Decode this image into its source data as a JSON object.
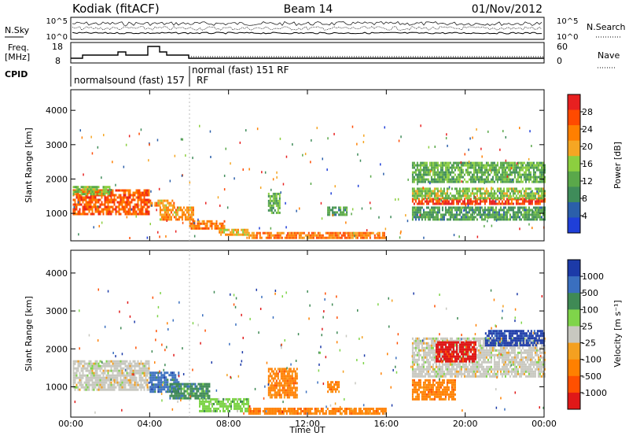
{
  "header": {
    "station": "Kodiak (fitACF)",
    "beam": "Beam 14",
    "date": "01/Nov/2012"
  },
  "noise_panel": {
    "left_label": "N.Sky",
    "right_label": "N.Search",
    "left_ticks": [
      "10^5",
      "10^0"
    ],
    "right_ticks": [
      "10^5",
      "10^0"
    ]
  },
  "freq_panel": {
    "left_label_line1": "Freq.",
    "left_label_line2": "[MHz]",
    "right_label": "Nave",
    "left_ticks": [
      "18",
      "8"
    ],
    "right_ticks": [
      "60",
      "0"
    ]
  },
  "cpid": {
    "label": "CPID",
    "modes": [
      "normalsound (fast) 157",
      "RF",
      "normal (fast) 151 RF"
    ]
  },
  "colors": {
    "power": [
      "#1f3fd8",
      "#2b5faa",
      "#3f8c5a",
      "#5aa84a",
      "#8ccf3f",
      "#f5a623",
      "#ff7f00",
      "#ff4a00",
      "#e82020"
    ],
    "velocity": [
      "#1c3aa8",
      "#3a6fbf",
      "#3f8a55",
      "#7fd44a",
      "#c8c8c0",
      "#f4a020",
      "#ff8000",
      "#ff5000",
      "#e01818"
    ]
  },
  "chart_data": [
    {
      "type": "heatmap",
      "title": "Power",
      "ylabel": "Slant Range [km]",
      "yticks": [
        "1000",
        "2000",
        "3000",
        "4000"
      ],
      "ylim": [
        200,
        4600
      ],
      "colorbar_label": "Power [dB]",
      "colorbar_ticks": [
        "4",
        "8",
        "12",
        "16",
        "20",
        "24",
        "28"
      ],
      "colorbar_range": [
        0,
        30
      ],
      "bands": [
        {
          "t0": 0.1,
          "t1": 4.0,
          "r0": 1000,
          "r1": 1700,
          "level": 24
        },
        {
          "t0": 0.1,
          "t1": 2.0,
          "r0": 1550,
          "r1": 1800,
          "level": 14
        },
        {
          "t0": 4.0,
          "t1": 5.2,
          "r0": 1200,
          "r1": 1400,
          "level": 20
        },
        {
          "t0": 4.5,
          "t1": 6.2,
          "r0": 800,
          "r1": 1200,
          "level": 20
        },
        {
          "t0": 6.0,
          "t1": 7.8,
          "r0": 550,
          "r1": 800,
          "level": 22
        },
        {
          "t0": 7.5,
          "t1": 9.0,
          "r0": 350,
          "r1": 550,
          "level": 18
        },
        {
          "t0": 9.0,
          "t1": 16.0,
          "r0": 320,
          "r1": 460,
          "level": 22
        },
        {
          "t0": 10.0,
          "t1": 10.6,
          "r0": 1000,
          "r1": 1600,
          "level": 12
        },
        {
          "t0": 13.0,
          "t1": 14.0,
          "r0": 950,
          "r1": 1200,
          "level": 10
        },
        {
          "t0": 17.3,
          "t1": 24.0,
          "r0": 1250,
          "r1": 1450,
          "level": 26
        },
        {
          "t0": 17.3,
          "t1": 24.0,
          "r0": 1450,
          "r1": 1750,
          "level": 14
        },
        {
          "t0": 17.3,
          "t1": 24.0,
          "r0": 1900,
          "r1": 2500,
          "level": 12
        },
        {
          "t0": 17.3,
          "t1": 24.0,
          "r0": 800,
          "r1": 1200,
          "level": 10
        }
      ]
    },
    {
      "type": "heatmap",
      "title": "Velocity",
      "ylabel": "Slant Range [km]",
      "yticks": [
        "1000",
        "2000",
        "3000",
        "4000"
      ],
      "ylim": [
        200,
        4600
      ],
      "colorbar_label": "Velocity [m s⁻¹]",
      "colorbar_ticks": [
        "1000",
        "500",
        "100",
        "25",
        "-25",
        "-100",
        "-500",
        "-1000"
      ],
      "bands": [
        {
          "t0": 0.1,
          "t1": 4.0,
          "r0": 900,
          "r1": 1700,
          "level": 4
        },
        {
          "t0": 4.0,
          "t1": 5.5,
          "r0": 900,
          "r1": 1400,
          "level": 1
        },
        {
          "t0": 5.0,
          "t1": 7.0,
          "r0": 700,
          "r1": 1100,
          "level": 2
        },
        {
          "t0": 6.5,
          "t1": 9.0,
          "r0": 350,
          "r1": 700,
          "level": 3
        },
        {
          "t0": 9.0,
          "t1": 16.0,
          "r0": 300,
          "r1": 450,
          "level": 6
        },
        {
          "t0": 10.0,
          "t1": 11.5,
          "r0": 700,
          "r1": 1500,
          "level": 6
        },
        {
          "t0": 13.0,
          "t1": 13.6,
          "r0": 900,
          "r1": 1150,
          "level": 6
        },
        {
          "t0": 17.3,
          "t1": 24.0,
          "r0": 1250,
          "r1": 2300,
          "level": 4
        },
        {
          "t0": 17.3,
          "t1": 19.5,
          "r0": 700,
          "r1": 1200,
          "level": 6
        },
        {
          "t0": 18.5,
          "t1": 20.5,
          "r0": 1700,
          "r1": 2200,
          "level": 8
        },
        {
          "t0": 21.0,
          "t1": 24.0,
          "r0": 2100,
          "r1": 2500,
          "level": 0
        }
      ]
    }
  ],
  "xaxis": {
    "label": "Time UT",
    "ticks": [
      "00:00",
      "04:00",
      "08:00",
      "12:00",
      "16:00",
      "20:00",
      "00:00"
    ],
    "range": [
      0,
      24
    ]
  }
}
